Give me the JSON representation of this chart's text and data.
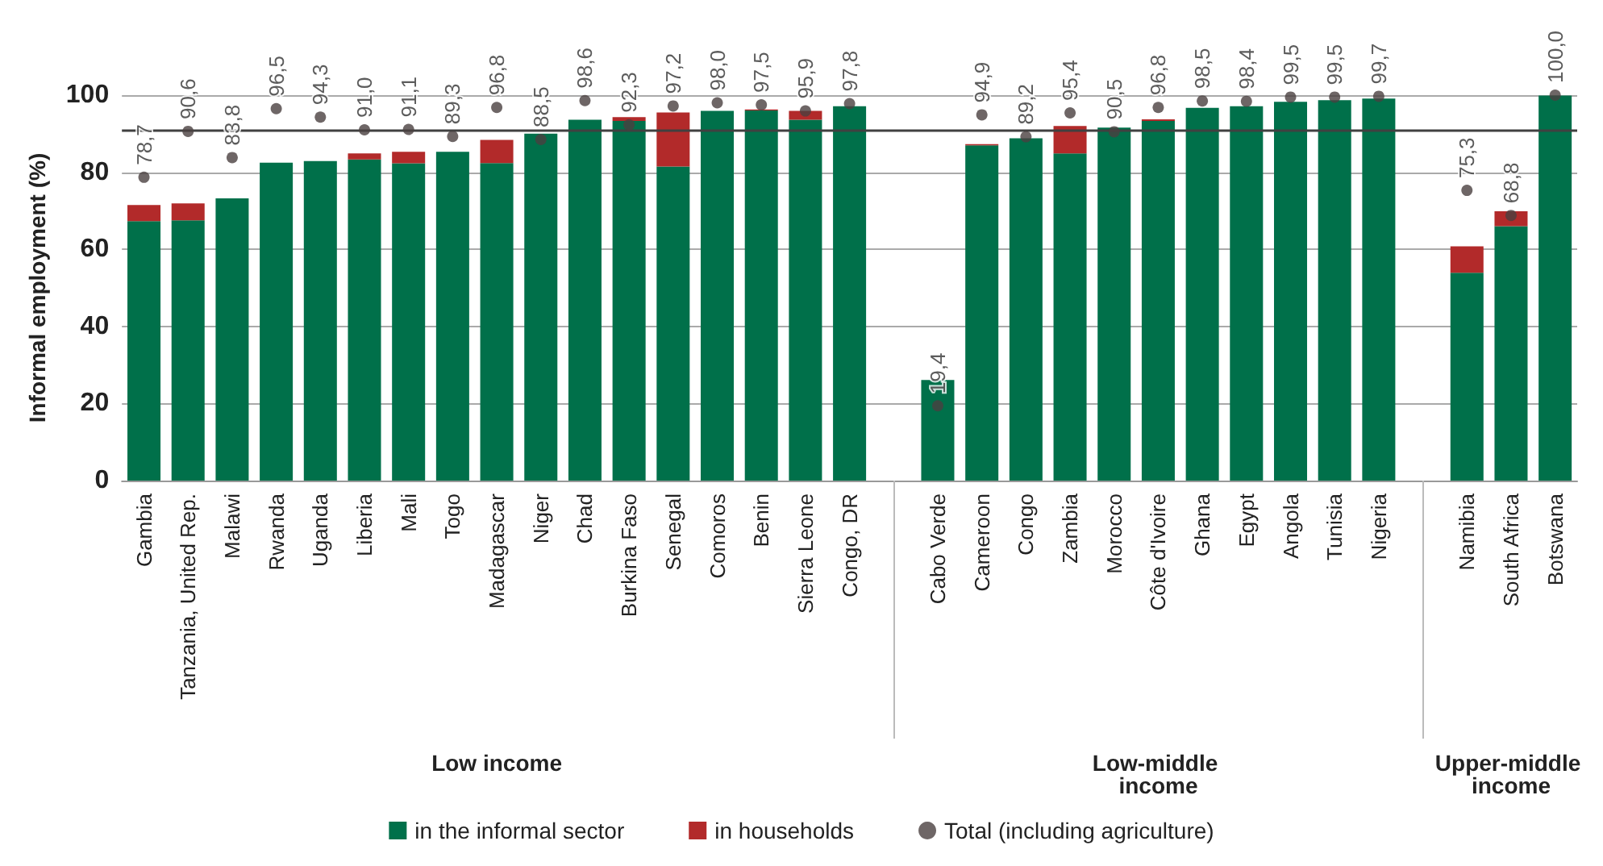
{
  "chart_data": {
    "type": "bar",
    "stacked": true,
    "ylabel": "Informal employment (%)",
    "categories": [
      "Gambia",
      "Tanzania, United Rep.",
      "Malawi",
      "Rwanda",
      "Uganda",
      "Liberia",
      "Mali",
      "Togo",
      "Madagascar",
      "Niger",
      "Chad",
      "Burkina Faso",
      "Senegal",
      "Comoros",
      "Benin",
      "Sierra Leone",
      "Congo, DR",
      null,
      "Cabo Verde",
      "Cameroon",
      "Congo",
      "Zambia",
      "Morocco",
      "Côte d'Ivoire",
      "Ghana",
      "Egypt",
      "Angola",
      "Tunisia",
      "Nigeria",
      null,
      "Namibia",
      "South Africa",
      "Botswana"
    ],
    "series": [
      {
        "name": "in the informal sector",
        "color": "#00704a",
        "values": [
          67.3,
          67.5,
          73.2,
          82.5,
          82.9,
          83.3,
          82.3,
          85.3,
          82.4,
          90.0,
          93.6,
          93.3,
          81.5,
          95.9,
          96.0,
          93.6,
          97.1,
          null,
          26.1,
          87.0,
          88.8,
          84.9,
          91.6,
          93.3,
          96.7,
          97.1,
          98.3,
          98.7,
          99.1,
          null,
          53.9,
          66.0,
          99.9
        ]
      },
      {
        "name": "in households",
        "color": "#b22a2a",
        "values": [
          4.2,
          4.4,
          null,
          null,
          null,
          1.6,
          3.0,
          null,
          6.0,
          null,
          null,
          1.0,
          14.0,
          null,
          0.3,
          2.3,
          null,
          null,
          null,
          0.3,
          null,
          7.1,
          null,
          0.4,
          null,
          null,
          null,
          null,
          null,
          null,
          6.9,
          3.9,
          null
        ]
      },
      {
        "name": "Total (including agriculture)",
        "type": "scatter",
        "color": "#4a4040",
        "values": [
          78.7,
          90.6,
          83.8,
          96.5,
          94.3,
          91.0,
          91.1,
          89.3,
          96.8,
          88.5,
          98.6,
          92.3,
          97.2,
          98.0,
          97.5,
          95.9,
          97.8,
          null,
          19.4,
          94.9,
          89.2,
          95.4,
          90.5,
          96.8,
          98.5,
          98.4,
          99.5,
          99.5,
          99.7,
          null,
          75.3,
          68.8,
          100.0
        ],
        "value_labels": [
          "78,7",
          "90,6",
          "83,8",
          "96,5",
          "94,3",
          "91,0",
          "91,1",
          "89,3",
          "96,8",
          "88,5",
          "98,6",
          "92,3",
          "97,2",
          "98,0",
          "97,5",
          "95,9",
          "97,8",
          null,
          "19,4",
          "94,9",
          "89,2",
          "95,4",
          "90,5",
          "96,8",
          "98,5",
          "98,4",
          "99,5",
          "99,5",
          "99,7",
          null,
          "75,3",
          "68,8",
          "100,0"
        ]
      }
    ],
    "ylim": [
      0,
      100
    ],
    "yticks": [
      0,
      20,
      40,
      60,
      80,
      100
    ],
    "grid": "y",
    "legend": "bottom",
    "marker": "circle",
    "ref_lines": [
      {
        "axis": "y",
        "value": 90.8,
        "color": "#404040"
      }
    ],
    "annotations": [
      "Low income",
      "Low-middle income",
      "Upper-middle income"
    ]
  }
}
